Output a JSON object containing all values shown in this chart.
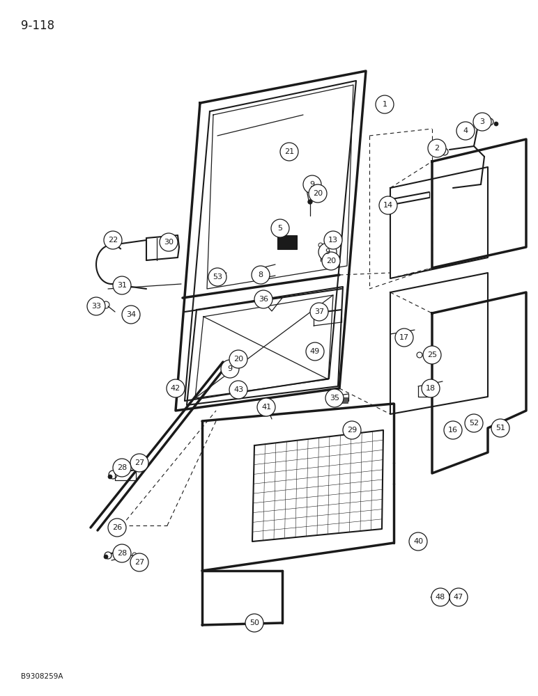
{
  "page_number": "9-118",
  "figure_code": "B9308259A",
  "background_color": "#ffffff",
  "line_color": "#1a1a1a",
  "figsize": [
    7.72,
    10.0
  ],
  "dpi": 100
}
